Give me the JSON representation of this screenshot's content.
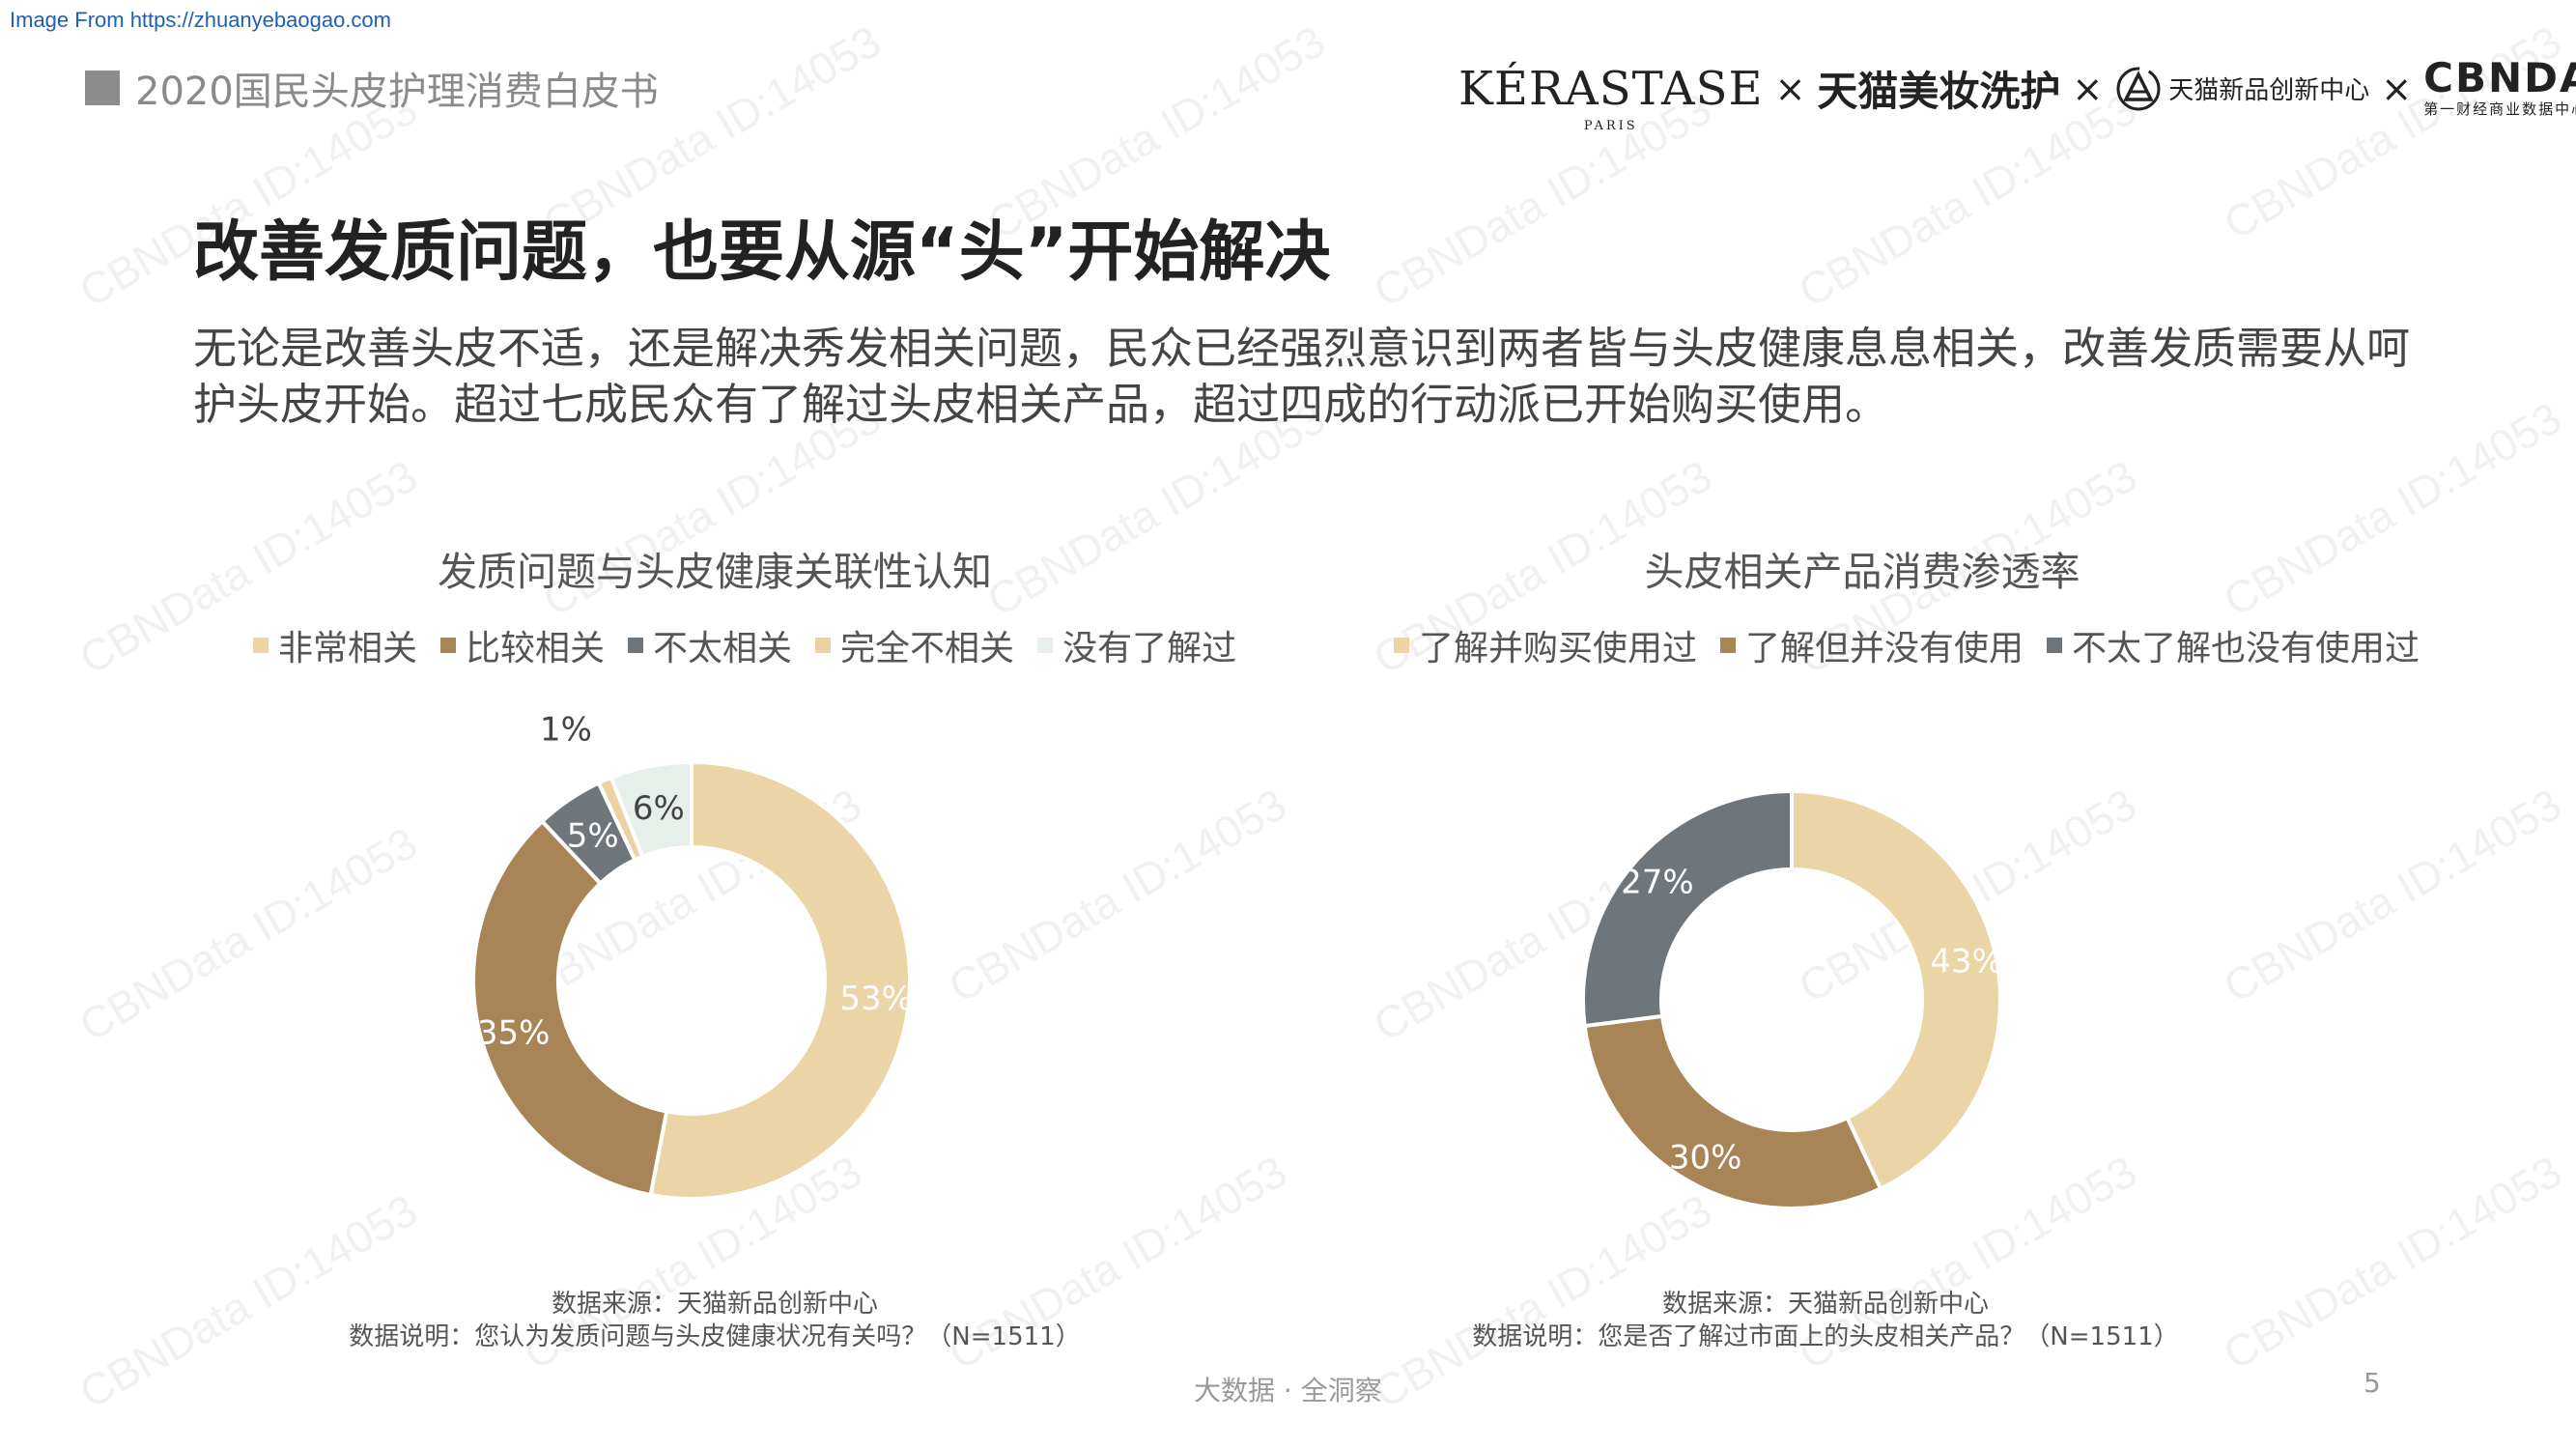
{
  "source_note": "Image From https://zhuanyebaogao.com",
  "report_title": "2020国民头皮护理消费白皮书",
  "partners": {
    "kerastase": "KÉRASTASE",
    "kerastase_sub": "PARIS",
    "tmall_beauty": "天猫美妆洗护",
    "tmall_innovation": "天猫新品创新中心",
    "cbndata": "CBNDATA",
    "cbndata_sub": "第一财经商业数据中心",
    "separator": "×"
  },
  "headline": "改善发质问题，也要从源“头”开始解决",
  "intro": "无论是改善头皮不适，还是解决秀发相关问题，民众已经强烈意识到两者皆与头皮健康息息相关，改善发质需要从呵护头皮开始。超过七成民众有了解过头皮相关产品，超过四成的行动派已开始购买使用。",
  "watermark": "CBNData ID:14053",
  "chart_data": [
    {
      "type": "pie",
      "title": "发质问题与头皮健康关联性认知",
      "categories": [
        "非常相关",
        "比较相关",
        "不太相关",
        "完全不相关",
        "没有了解过"
      ],
      "values": [
        53,
        35,
        5,
        1,
        6
      ],
      "labels": [
        "53%",
        "35%",
        "5%",
        "1%",
        "6%"
      ],
      "colors": [
        "#ebd4a6",
        "#a88556",
        "#6e757b",
        "#ead2a2",
        "#e7efeb"
      ],
      "legend_position": "top",
      "source": "数据来源：天猫新品创新中心",
      "description": "数据说明：您认为发质问题与头皮健康状况有关吗？（N=1511）"
    },
    {
      "type": "pie",
      "title": "头皮相关产品消费渗透率",
      "categories": [
        "了解并购买使用过",
        "了解但并没有使用",
        "不太了解也没有使用过"
      ],
      "values": [
        43,
        30,
        27
      ],
      "labels": [
        "43%",
        "30%",
        "27%"
      ],
      "colors": [
        "#ebd4a6",
        "#a88556",
        "#6e757b"
      ],
      "legend_position": "top",
      "source": "数据来源：天猫新品创新中心",
      "description": "数据说明：您是否了解过市面上的头皮相关产品？（N=1511）"
    }
  ],
  "footer": "大数据 · 全洞察",
  "page_number": "5"
}
